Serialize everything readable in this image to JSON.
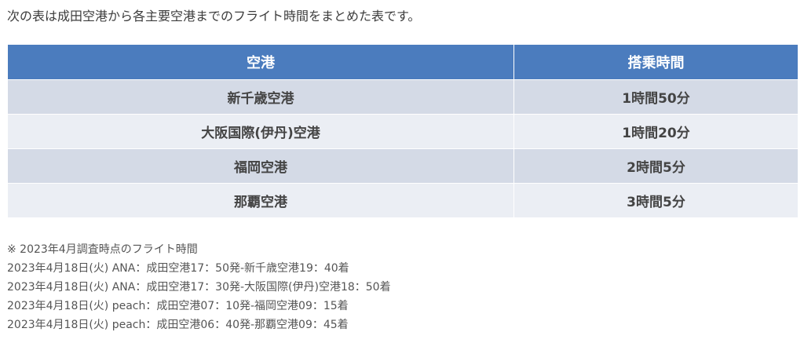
{
  "intro_text": "次の表は成田空港から各主要空港までのフライト時間をまとめた表です。",
  "table": {
    "headers": [
      "空港",
      "搭乗時間"
    ],
    "rows": [
      [
        "新千歳空港",
        "1時間50分"
      ],
      [
        "大阪国際(伊丹)空港",
        "1時間20分"
      ],
      [
        "福岡空港",
        "2時間5分"
      ],
      [
        "那覇空港",
        "3時間5分"
      ]
    ],
    "colors": {
      "header_bg": "#4b7cbe",
      "row_odd_bg": "#d4dae6",
      "row_even_bg": "#ebeef4"
    }
  },
  "notes": [
    "※ 2023年4月調査時点のフライト時間",
    "2023年4月18日(火) ANA：成田空港17：50発-新千歳空港19：40着",
    "2023年4月18日(火) ANA：成田空港17：30発-大阪国際(伊丹)空港18：50着",
    "2023年4月18日(火) peach：成田空港07：10発-福岡空港09：15着",
    "2023年4月18日(火) peach：成田空港06：40発-那覇空港09：45着"
  ]
}
